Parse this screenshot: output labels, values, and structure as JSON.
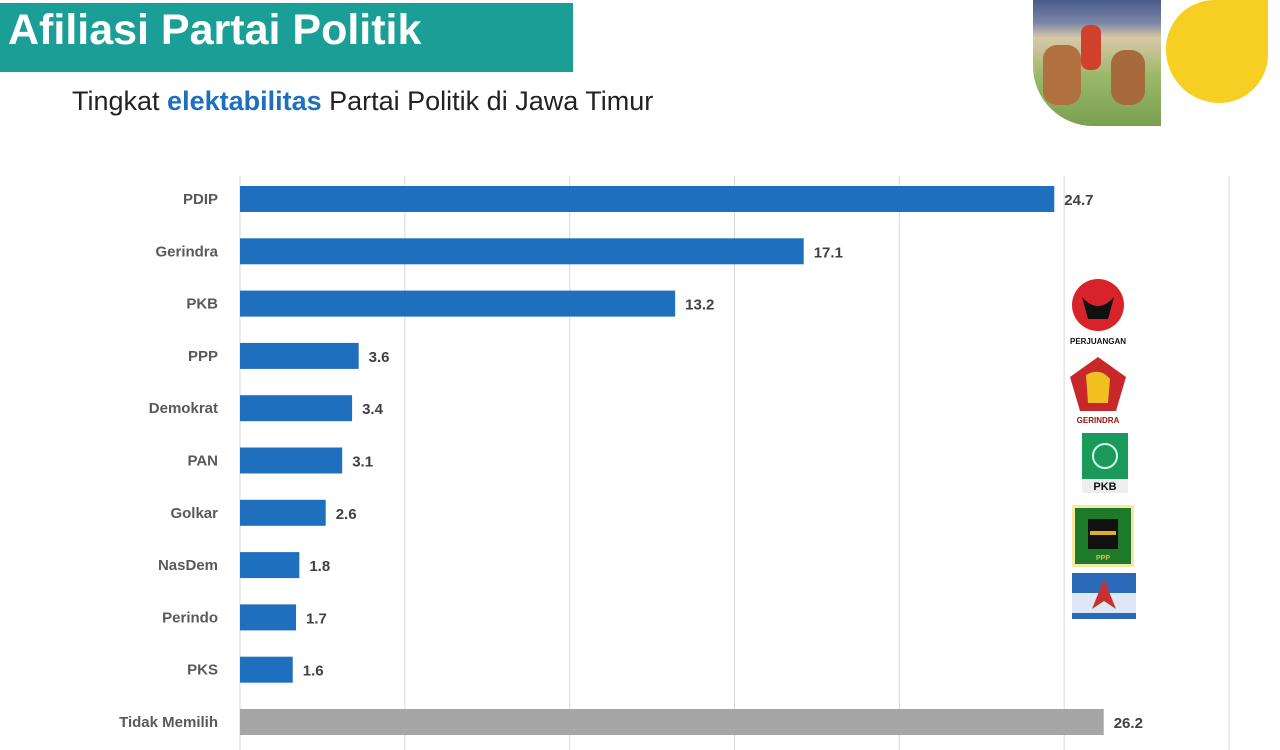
{
  "header": {
    "title": "Afiliasi Partai Politik",
    "subtitle_pre": "Tingkat ",
    "subtitle_highlight": "elektabilitas",
    "subtitle_post": " Partai Politik di Jawa Timur",
    "banner_color": "#1a9e96",
    "highlight_color": "#1f6fbf"
  },
  "logos": [
    "PDI PERJUANGAN",
    "GERINDRA",
    "PKB",
    "PPP",
    "Demokrat"
  ],
  "chart_data": {
    "type": "bar",
    "orientation": "horizontal",
    "categories": [
      "PDIP",
      "Gerindra",
      "PKB",
      "PPP",
      "Demokrat",
      "PAN",
      "Golkar",
      "NasDem",
      "Perindo",
      "PKS",
      "Tidak Memilih"
    ],
    "values": [
      24.7,
      17.1,
      13.2,
      3.6,
      3.4,
      3.1,
      2.6,
      1.8,
      1.7,
      1.6,
      26.2
    ],
    "labels": [
      "24.7",
      "17.1",
      "13.2",
      "3.6",
      "3.4",
      "3.1",
      "2.6",
      "1.8",
      "1.7",
      "1.6",
      "26.2"
    ],
    "colors": [
      "#1f6fbf",
      "#1f6fbf",
      "#1f6fbf",
      "#1f6fbf",
      "#1f6fbf",
      "#1f6fbf",
      "#1f6fbf",
      "#1f6fbf",
      "#1f6fbf",
      "#1f6fbf",
      "#a6a6a6"
    ],
    "xlim": [
      0,
      30
    ],
    "grid": true,
    "title": "",
    "xlabel": "",
    "ylabel": ""
  }
}
